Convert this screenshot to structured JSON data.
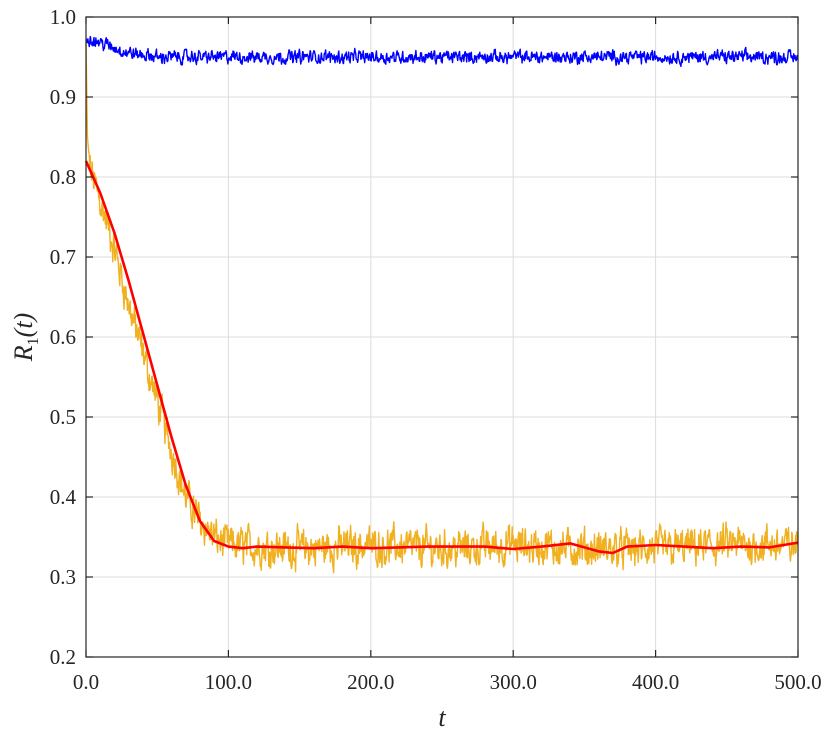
{
  "chart_data": {
    "type": "line",
    "xlabel": "t",
    "ylabel_main": "R",
    "ylabel_sub": "1",
    "ylabel_tail": "(t)",
    "xlim": [
      0,
      500
    ],
    "ylim": [
      0.2,
      1.0
    ],
    "grid": true,
    "x_ticks": [
      0,
      100,
      200,
      300,
      400,
      500
    ],
    "x_tick_labels": [
      "0.0",
      "100.0",
      "200.0",
      "300.0",
      "400.0",
      "500.0"
    ],
    "y_ticks": [
      0.2,
      0.3,
      0.4,
      0.5,
      0.6,
      0.7,
      0.8,
      0.9,
      1.0
    ],
    "y_tick_labels": [
      "0.2",
      "0.3",
      "0.4",
      "0.5",
      "0.6",
      "0.7",
      "0.8",
      "0.9",
      "1.0"
    ],
    "series": [
      {
        "color": "#f0b020",
        "style": "noisy",
        "x": [
          0,
          1,
          3,
          10,
          20,
          30,
          40,
          50,
          60,
          70,
          80,
          90,
          100,
          150,
          200,
          250,
          300,
          350,
          400,
          450,
          500
        ],
        "values": [
          0.97,
          0.85,
          0.81,
          0.77,
          0.71,
          0.64,
          0.58,
          0.52,
          0.46,
          0.4,
          0.37,
          0.35,
          0.34,
          0.335,
          0.34,
          0.335,
          0.34,
          0.335,
          0.335,
          0.34,
          0.34
        ]
      },
      {
        "color": "#ff0000",
        "style": "smooth",
        "x": [
          0,
          10,
          20,
          30,
          40,
          50,
          60,
          70,
          80,
          90,
          100,
          110,
          120,
          140,
          160,
          180,
          200,
          240,
          280,
          300,
          320,
          340,
          360,
          370,
          380,
          400,
          420,
          440,
          460,
          480,
          500
        ],
        "values": [
          0.82,
          0.78,
          0.73,
          0.67,
          0.605,
          0.54,
          0.475,
          0.415,
          0.37,
          0.345,
          0.338,
          0.336,
          0.338,
          0.337,
          0.336,
          0.338,
          0.336,
          0.338,
          0.338,
          0.335,
          0.338,
          0.342,
          0.332,
          0.33,
          0.338,
          0.34,
          0.338,
          0.336,
          0.338,
          0.337,
          0.343
        ]
      },
      {
        "color": "#0000ff",
        "style": "noisy",
        "x": [
          0,
          10,
          30,
          50,
          500
        ],
        "values": [
          0.975,
          0.968,
          0.955,
          0.95,
          0.95
        ]
      }
    ]
  }
}
